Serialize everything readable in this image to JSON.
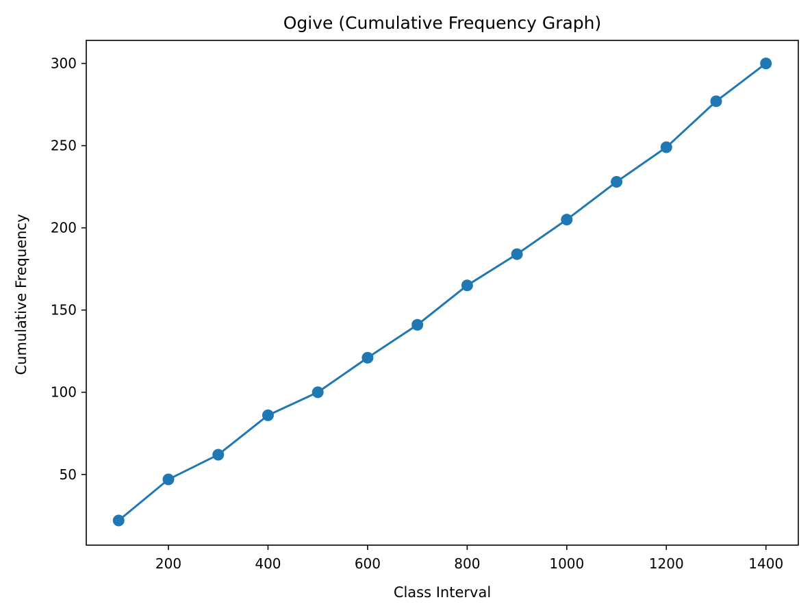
{
  "chart_data": {
    "type": "line",
    "title": "Ogive (Cumulative Frequency Graph)",
    "xlabel": "Class Interval",
    "ylabel": "Cumulative Frequency",
    "x": [
      100,
      200,
      300,
      400,
      500,
      600,
      700,
      800,
      900,
      1000,
      1100,
      1200,
      1300,
      1400
    ],
    "series": [
      {
        "values": [
          22,
          47,
          62,
          86,
          100,
          121,
          141,
          165,
          184,
          205,
          228,
          249,
          277,
          300
        ],
        "color": "#1f77b4",
        "marker": "circle"
      }
    ],
    "xlim": [
      35,
      1465
    ],
    "ylim": [
      7,
      314
    ],
    "xticks": [
      200,
      400,
      600,
      800,
      1000,
      1200,
      1400
    ],
    "yticks": [
      50,
      100,
      150,
      200,
      250,
      300
    ],
    "grid": false,
    "legend": "none"
  }
}
